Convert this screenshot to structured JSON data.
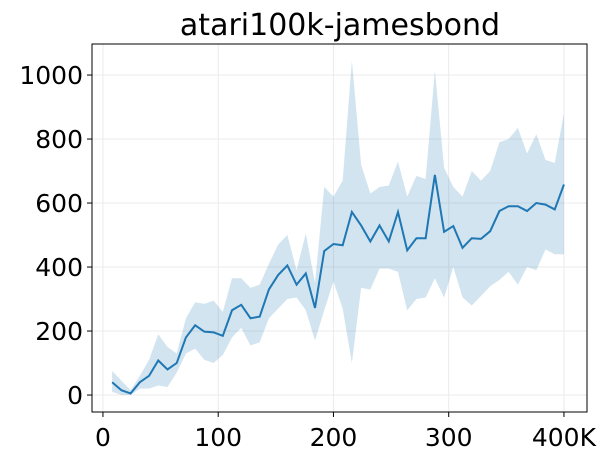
{
  "chart_data": {
    "type": "line",
    "title": "atari100k-jamesbond",
    "x": [
      8,
      16,
      24,
      32,
      40,
      48,
      56,
      64,
      72,
      80,
      88,
      96,
      104,
      112,
      120,
      128,
      136,
      144,
      152,
      160,
      168,
      176,
      184,
      192,
      200,
      208,
      216,
      224,
      232,
      240,
      248,
      256,
      264,
      272,
      280,
      288,
      296,
      304,
      312,
      320,
      328,
      336,
      344,
      352,
      360,
      368,
      376,
      384,
      392,
      400
    ],
    "values": [
      40,
      15,
      5,
      40,
      60,
      108,
      80,
      100,
      180,
      218,
      198,
      196,
      185,
      265,
      282,
      240,
      245,
      330,
      375,
      405,
      345,
      380,
      272,
      450,
      472,
      468,
      572,
      530,
      480,
      530,
      480,
      572,
      452,
      490,
      490,
      688,
      510,
      528,
      460,
      490,
      488,
      512,
      575,
      590,
      590,
      575,
      600,
      595,
      580,
      658
    ],
    "upper": [
      75,
      45,
      15,
      60,
      110,
      190,
      150,
      130,
      240,
      290,
      285,
      295,
      260,
      365,
      365,
      335,
      345,
      410,
      470,
      500,
      390,
      505,
      350,
      650,
      620,
      670,
      1045,
      720,
      630,
      650,
      655,
      730,
      620,
      685,
      675,
      1015,
      710,
      650,
      620,
      700,
      670,
      700,
      790,
      800,
      835,
      755,
      815,
      735,
      725,
      880
    ],
    "lower": [
      10,
      0,
      0,
      20,
      20,
      30,
      25,
      70,
      130,
      145,
      110,
      100,
      125,
      180,
      210,
      155,
      165,
      240,
      270,
      300,
      305,
      265,
      170,
      265,
      355,
      270,
      100,
      335,
      330,
      395,
      395,
      385,
      265,
      300,
      305,
      365,
      305,
      400,
      305,
      280,
      310,
      340,
      360,
      385,
      345,
      400,
      390,
      455,
      440,
      440
    ],
    "color": "#1f77b4",
    "xlim": [
      -9.5,
      420
    ],
    "ylim": [
      -53,
      1097
    ],
    "xticks": [
      0,
      100,
      200,
      300,
      {
        "value": 400,
        "label": "400K"
      }
    ],
    "yticks": [
      0,
      200,
      400,
      600,
      800,
      1000
    ],
    "grid": true
  }
}
